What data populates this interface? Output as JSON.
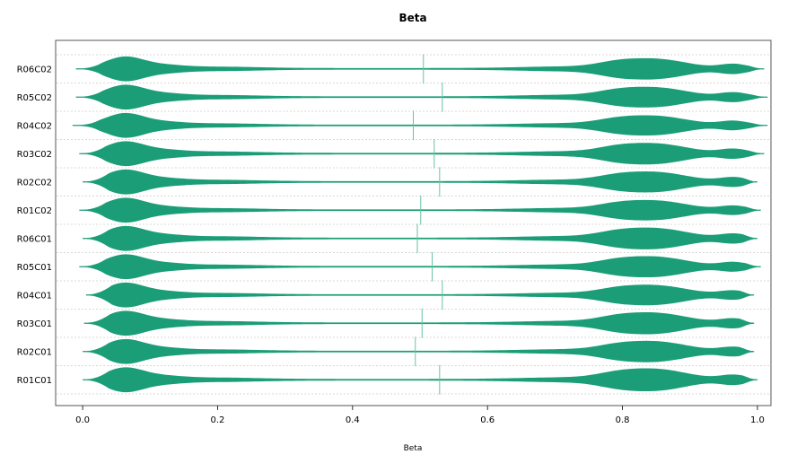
{
  "chart_data": {
    "type": "violin",
    "title": "Beta",
    "xlabel": "Beta",
    "ylabel": "",
    "xlim": [
      -0.04,
      1.02
    ],
    "xticks": [
      0.0,
      0.2,
      0.4,
      0.6,
      0.8,
      1.0
    ],
    "xtick_labels": [
      "0.0",
      "0.2",
      "0.4",
      "0.6",
      "0.8",
      "1.0"
    ],
    "grid": true,
    "legend": "none",
    "colors": {
      "violin_fill": "#1b9e77",
      "median_line": "#66c2a5",
      "axis": "#000000",
      "grid": "#cccccc"
    },
    "categories": [
      "R06C02",
      "R05C02",
      "R04C02",
      "R03C02",
      "R02C02",
      "R01C02",
      "R06C01",
      "R05C01",
      "R04C01",
      "R03C01",
      "R02C01",
      "R01C01"
    ],
    "category_labels_visible": [
      "​06C02",
      "​05C02",
      "​04C02",
      "​03C02",
      "​02C02",
      "​01C02",
      "​06C01",
      "​05C01",
      "​04C01",
      "​03C01",
      "​02C01",
      "​01C01"
    ],
    "series": [
      {
        "category": "R06C02",
        "min": -0.01,
        "max": 1.01,
        "median": 0.505
      },
      {
        "category": "R05C02",
        "min": -0.01,
        "max": 1.015,
        "median": 0.533
      },
      {
        "category": "R04C02",
        "min": -0.015,
        "max": 1.015,
        "median": 0.49
      },
      {
        "category": "R03C02",
        "min": -0.005,
        "max": 1.01,
        "median": 0.521
      },
      {
        "category": "R02C02",
        "min": 0.0,
        "max": 1.0,
        "median": 0.529
      },
      {
        "category": "R01C02",
        "min": -0.005,
        "max": 1.005,
        "median": 0.501
      },
      {
        "category": "R06C01",
        "min": 0.0,
        "max": 1.0,
        "median": 0.496
      },
      {
        "category": "R05C01",
        "min": -0.005,
        "max": 1.005,
        "median": 0.518
      },
      {
        "category": "R04C01",
        "min": 0.005,
        "max": 0.995,
        "median": 0.533
      },
      {
        "category": "R03C01",
        "min": 0.002,
        "max": 0.995,
        "median": 0.503
      },
      {
        "category": "R02C01",
        "min": 0.0,
        "max": 0.995,
        "median": 0.493
      },
      {
        "category": "R01C01",
        "min": 0.0,
        "max": 1.0,
        "median": 0.529
      }
    ]
  }
}
